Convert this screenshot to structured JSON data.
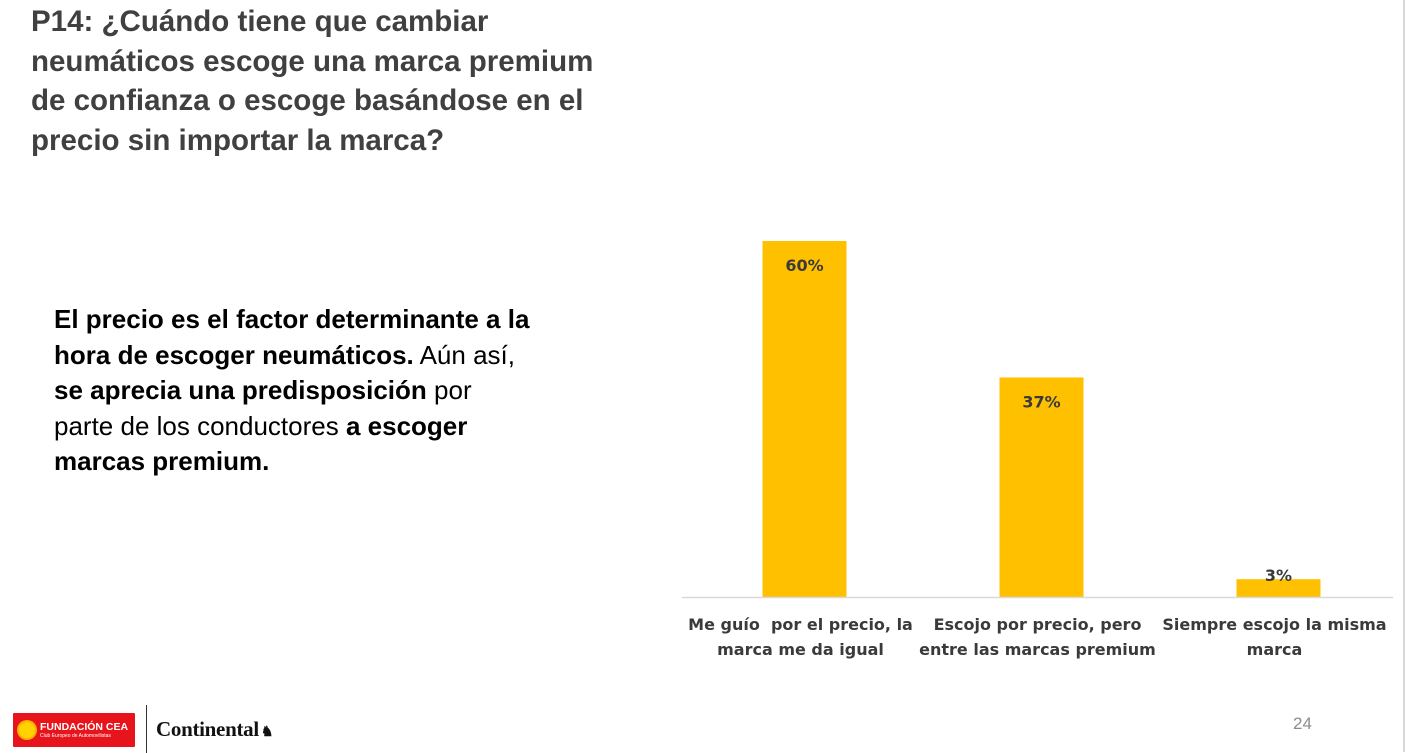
{
  "slide": {
    "title_lines": [
      "P14: ¿Cuándo tiene que cambiar",
      "neumáticos escoge una marca premium",
      "de confianza o escoge basándose en el",
      "precio sin importar la marca?"
    ],
    "summary": {
      "l1": "El precio es el factor determinante a la",
      "l2_bold": "hora de escoger neumáticos.",
      "l2_reg": " Aún así,",
      "l3_bold": "se aprecia una predisposición",
      "l3_reg": " por",
      "l4_reg": "parte de los conductores ",
      "l4_bold": "a escoger",
      "l5": "marcas premium."
    },
    "page_number": "24",
    "logos": {
      "cea_name": "FUNDACIÓN CEA",
      "cea_sub": "Club Europeo de Automovilistas",
      "continental": "Continental"
    }
  },
  "chart_data": {
    "type": "bar",
    "categories": [
      [
        "Me guío  por el precio, la",
        "marca me da igual"
      ],
      [
        "Escojo por precio, pero",
        "entre las marcas premium"
      ],
      [
        "Siempre escojo la misma",
        "marca"
      ]
    ],
    "values": [
      60,
      37,
      3
    ],
    "value_labels": [
      "60%",
      "37%",
      "3%"
    ],
    "unit": "%",
    "ylim": [
      0,
      60
    ],
    "grid": false,
    "legend": "none",
    "colors": {
      "bar": "#FFC000",
      "axis": "#d9d9d9",
      "text": "#3a3a3a"
    }
  }
}
